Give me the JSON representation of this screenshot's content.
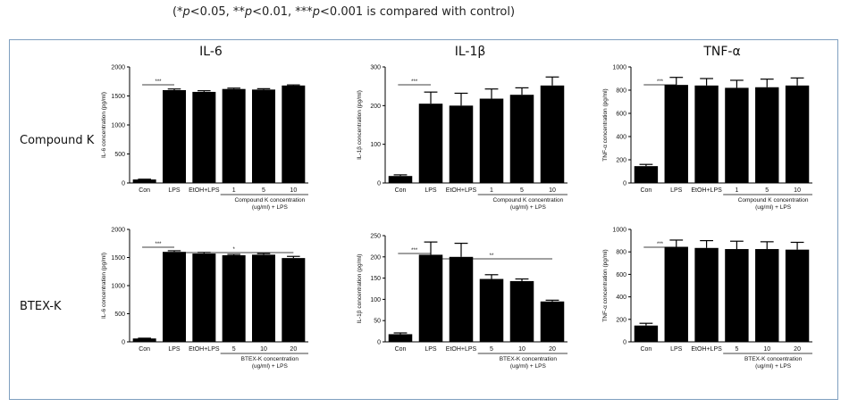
{
  "caption": {
    "open": "(",
    "p1_star": "*",
    "p1_p": "p",
    "p1_rest": "<0.05,  ",
    "p2_star": "**",
    "p2_p": "p",
    "p2_rest": "<0.01,  ",
    "p3_star": "***",
    "p3_p": "p",
    "p3_rest": "<0.001 is compared with control)"
  },
  "panel_titles": [
    "IL-6",
    "IL-1β",
    "TNF-α"
  ],
  "row_labels": [
    "Compound K",
    "BTEX-K"
  ],
  "colors": {
    "bar": "#000000",
    "frame": "#7f9fbf"
  },
  "chart_data": [
    {
      "type": "bar",
      "title": "IL-6",
      "row": "Compound K",
      "categories": [
        "Con",
        "LPS",
        "EtOH+LPS",
        "1",
        "5",
        "10"
      ],
      "values": [
        60,
        1600,
        1570,
        1620,
        1610,
        1680
      ],
      "errors": [
        5,
        20,
        20,
        15,
        15,
        10
      ],
      "ylabel": "IL-6 concentration (pg/ml)",
      "yticks": [
        0,
        500,
        1000,
        1500,
        2000
      ],
      "ylim": [
        0,
        2000
      ],
      "group_label": [
        "Compound K concentration",
        "(ug/ml) + LPS"
      ],
      "group_from": 3,
      "sig": [
        {
          "from": 0,
          "to": 1,
          "label": "***"
        }
      ]
    },
    {
      "type": "bar",
      "title": "IL-1β",
      "row": "Compound K",
      "categories": [
        "Con",
        "LPS",
        "EtOH+LPS",
        "1",
        "5",
        "10"
      ],
      "values": [
        18,
        205,
        200,
        218,
        228,
        252
      ],
      "errors": [
        3,
        30,
        32,
        25,
        18,
        22
      ],
      "ylabel": "IL-1β concentration (pg/ml)",
      "yticks": [
        0,
        100,
        200,
        300
      ],
      "ylim": [
        0,
        300
      ],
      "group_label": [
        "Compound K concentration",
        "(ug/ml) + LPS"
      ],
      "group_from": 3,
      "sig": [
        {
          "from": 0,
          "to": 1,
          "label": "***"
        }
      ]
    },
    {
      "type": "bar",
      "title": "TNF-α",
      "row": "Compound K",
      "categories": [
        "Con",
        "LPS",
        "EtOH+LPS",
        "1",
        "5",
        "10"
      ],
      "values": [
        145,
        845,
        840,
        820,
        825,
        840
      ],
      "errors": [
        15,
        65,
        60,
        65,
        70,
        65
      ],
      "ylabel": "TNF-α concentration (pg/ml)",
      "yticks": [
        0,
        200,
        400,
        600,
        800,
        1000
      ],
      "ylim": [
        0,
        1000
      ],
      "group_label": [
        "Compound K concentration",
        "(ug/ml) + LPS"
      ],
      "group_from": 3,
      "sig": [
        {
          "from": 0,
          "to": 1,
          "label": "***"
        }
      ]
    },
    {
      "type": "bar",
      "title": "IL-6",
      "row": "BTEX-K",
      "categories": [
        "Con",
        "LPS",
        "EtOH+LPS",
        "5",
        "10",
        "20"
      ],
      "values": [
        60,
        1600,
        1570,
        1540,
        1550,
        1490
      ],
      "errors": [
        5,
        20,
        20,
        15,
        20,
        30
      ],
      "ylabel": "IL-6 concentration (pg/ml)",
      "yticks": [
        0,
        500,
        1000,
        1500,
        2000
      ],
      "ylim": [
        0,
        2000
      ],
      "group_label": [
        "BTEX-K concentration",
        "(ug/ml) + LPS"
      ],
      "group_from": 3,
      "sig": [
        {
          "from": 0,
          "to": 1,
          "label": "***"
        },
        {
          "from": 1,
          "to": 5,
          "label": "*"
        }
      ]
    },
    {
      "type": "bar",
      "title": "IL-1β",
      "row": "BTEX-K",
      "categories": [
        "Con",
        "LPS",
        "EtOH+LPS",
        "5",
        "10",
        "20"
      ],
      "values": [
        18,
        205,
        200,
        148,
        143,
        95
      ],
      "errors": [
        3,
        30,
        32,
        10,
        5,
        3
      ],
      "ylabel": "IL-1β concentration (pg/ml)",
      "yticks": [
        0,
        50,
        100,
        150,
        200,
        250
      ],
      "ylim": [
        0,
        250
      ],
      "group_label": [
        "BTEX-K concentration",
        "(ug/ml) + LPS"
      ],
      "group_from": 3,
      "sig": [
        {
          "from": 0,
          "to": 1,
          "label": "***"
        },
        {
          "from": 1,
          "to": 5,
          "label": "**"
        }
      ]
    },
    {
      "type": "bar",
      "title": "TNF-α",
      "row": "BTEX-K",
      "categories": [
        "Con",
        "LPS",
        "EtOH+LPS",
        "5",
        "10",
        "20"
      ],
      "values": [
        145,
        845,
        835,
        825,
        825,
        820
      ],
      "errors": [
        20,
        60,
        65,
        70,
        65,
        65
      ],
      "ylabel": "TNF-α concentration (pg/ml)",
      "yticks": [
        0,
        200,
        400,
        600,
        800,
        1000
      ],
      "ylim": [
        0,
        1000
      ],
      "group_label": [
        "BTEX-K concentration",
        "(ug/ml) + LPS"
      ],
      "group_from": 3,
      "sig": [
        {
          "from": 0,
          "to": 1,
          "label": "***"
        }
      ]
    }
  ]
}
